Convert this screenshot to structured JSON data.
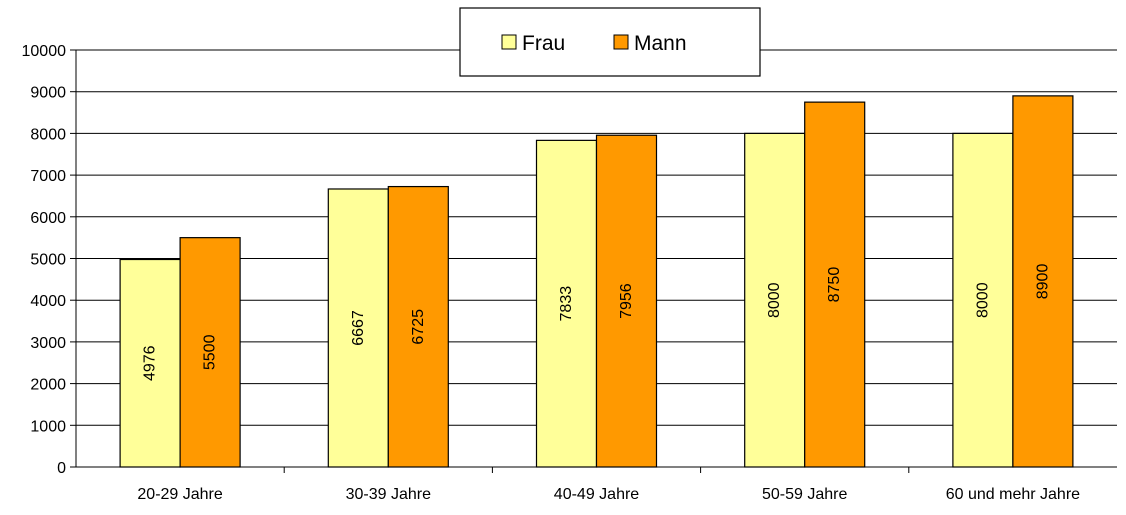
{
  "chart_data": {
    "type": "bar",
    "categories": [
      "20-29 Jahre",
      "30-39 Jahre",
      "40-49 Jahre",
      "50-59 Jahre",
      "60 und mehr Jahre"
    ],
    "series": [
      {
        "name": "Frau",
        "values": [
          4976,
          6667,
          7833,
          8000,
          8000
        ],
        "labels": [
          "4976",
          "6667",
          "7833",
          "8000",
          "8000"
        ],
        "color": "#ffff99"
      },
      {
        "name": "Mann",
        "values": [
          5500,
          6725,
          7956,
          8750,
          8900
        ],
        "labels": [
          "5500",
          "6725",
          "7956",
          "8750",
          "8900"
        ],
        "color": "#ff9900"
      }
    ],
    "ylim": [
      0,
      10000
    ],
    "yticks": [
      "0",
      "1000",
      "2000",
      "3000",
      "4000",
      "5000",
      "6000",
      "7000",
      "8000",
      "9000",
      "10000"
    ],
    "grid": true,
    "legend_position": "top-center",
    "data_labels_rotated": true,
    "title": "",
    "xlabel": "",
    "ylabel": ""
  }
}
